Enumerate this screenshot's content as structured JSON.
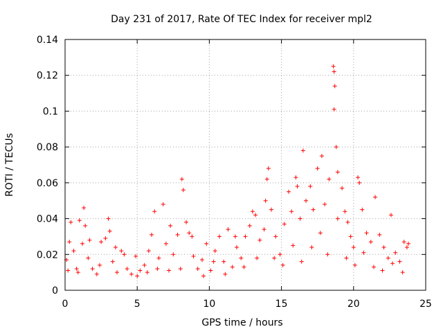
{
  "chart_data": {
    "type": "scatter",
    "title": "Day 231 of 2017, Rate Of TEC Index for receiver mpl2",
    "xlabel": "GPS time / hours",
    "ylabel": "ROTI / TECUs",
    "xlim": [
      0,
      25
    ],
    "ylim": [
      0,
      0.14
    ],
    "xticks": [
      0,
      5,
      10,
      15,
      20,
      25
    ],
    "xtick_labels": [
      "0",
      "5",
      "10",
      "15",
      "20",
      "25"
    ],
    "yticks": [
      0,
      0.02,
      0.04,
      0.06,
      0.08,
      0.1,
      0.12,
      0.14
    ],
    "ytick_labels": [
      "0",
      "0.02",
      "0.04",
      "0.06",
      "0.08",
      "0.1",
      "0.12",
      "0.14"
    ],
    "grid": true,
    "marker": "+",
    "color": "#ff0000",
    "series": [
      {
        "name": "ROTI",
        "points": [
          [
            0.1,
            0.017
          ],
          [
            0.3,
            0.027
          ],
          [
            0.4,
            0.038
          ],
          [
            0.6,
            0.022
          ],
          [
            0.8,
            0.012
          ],
          [
            1.0,
            0.039
          ],
          [
            1.2,
            0.026
          ],
          [
            1.3,
            0.046
          ],
          [
            1.4,
            0.036
          ],
          [
            1.6,
            0.018
          ],
          [
            1.9,
            0.012
          ],
          [
            2.2,
            0.009
          ],
          [
            2.5,
            0.027
          ],
          [
            2.8,
            0.029
          ],
          [
            3.0,
            0.04
          ],
          [
            3.1,
            0.033
          ],
          [
            3.3,
            0.016
          ],
          [
            3.6,
            0.01
          ],
          [
            3.9,
            0.022
          ],
          [
            4.3,
            0.012
          ],
          [
            4.6,
            0.009
          ],
          [
            4.9,
            0.019
          ],
          [
            5.2,
            0.011
          ],
          [
            5.5,
            0.014
          ],
          [
            5.8,
            0.022
          ],
          [
            6.0,
            0.031
          ],
          [
            6.2,
            0.044
          ],
          [
            6.5,
            0.018
          ],
          [
            6.8,
            0.048
          ],
          [
            7.0,
            0.026
          ],
          [
            7.2,
            0.011
          ],
          [
            7.5,
            0.02
          ],
          [
            7.8,
            0.031
          ],
          [
            8.1,
            0.062
          ],
          [
            8.2,
            0.056
          ],
          [
            8.4,
            0.038
          ],
          [
            8.6,
            0.032
          ],
          [
            8.9,
            0.019
          ],
          [
            9.2,
            0.012
          ],
          [
            9.5,
            0.017
          ],
          [
            9.8,
            0.026
          ],
          [
            10.1,
            0.011
          ],
          [
            10.4,
            0.022
          ],
          [
            10.7,
            0.03
          ],
          [
            11.0,
            0.016
          ],
          [
            11.3,
            0.034
          ],
          [
            11.6,
            0.013
          ],
          [
            11.9,
            0.024
          ],
          [
            12.2,
            0.018
          ],
          [
            12.5,
            0.03
          ],
          [
            12.8,
            0.036
          ],
          [
            13.0,
            0.044
          ],
          [
            13.2,
            0.042
          ],
          [
            13.5,
            0.028
          ],
          [
            13.8,
            0.034
          ],
          [
            14.0,
            0.062
          ],
          [
            14.1,
            0.068
          ],
          [
            14.3,
            0.045
          ],
          [
            14.6,
            0.03
          ],
          [
            14.9,
            0.02
          ],
          [
            15.2,
            0.037
          ],
          [
            15.5,
            0.055
          ],
          [
            15.7,
            0.044
          ],
          [
            16.0,
            0.063
          ],
          [
            16.1,
            0.058
          ],
          [
            16.3,
            0.04
          ],
          [
            16.5,
            0.078
          ],
          [
            16.7,
            0.05
          ],
          [
            17.0,
            0.058
          ],
          [
            17.2,
            0.045
          ],
          [
            17.5,
            0.068
          ],
          [
            17.8,
            0.075
          ],
          [
            18.0,
            0.048
          ],
          [
            18.3,
            0.062
          ],
          [
            18.6,
            0.125
          ],
          [
            18.65,
            0.122
          ],
          [
            18.7,
            0.114
          ],
          [
            18.65,
            0.101
          ],
          [
            18.8,
            0.08
          ],
          [
            18.9,
            0.066
          ],
          [
            19.2,
            0.057
          ],
          [
            19.4,
            0.044
          ],
          [
            19.6,
            0.038
          ],
          [
            19.8,
            0.03
          ],
          [
            20.0,
            0.024
          ],
          [
            20.3,
            0.063
          ],
          [
            20.4,
            0.06
          ],
          [
            20.6,
            0.045
          ],
          [
            20.9,
            0.032
          ],
          [
            21.2,
            0.027
          ],
          [
            21.5,
            0.052
          ],
          [
            21.8,
            0.031
          ],
          [
            22.1,
            0.024
          ],
          [
            22.4,
            0.018
          ],
          [
            22.6,
            0.042
          ],
          [
            22.9,
            0.021
          ],
          [
            23.2,
            0.016
          ],
          [
            23.5,
            0.027
          ],
          [
            23.7,
            0.024
          ],
          [
            0.2,
            0.011
          ],
          [
            0.9,
            0.01
          ],
          [
            1.7,
            0.028
          ],
          [
            2.4,
            0.014
          ],
          [
            3.5,
            0.024
          ],
          [
            4.1,
            0.02
          ],
          [
            5.0,
            0.008
          ],
          [
            5.7,
            0.01
          ],
          [
            6.4,
            0.012
          ],
          [
            7.3,
            0.036
          ],
          [
            8.0,
            0.012
          ],
          [
            8.8,
            0.03
          ],
          [
            9.6,
            0.008
          ],
          [
            10.3,
            0.016
          ],
          [
            11.1,
            0.009
          ],
          [
            11.8,
            0.03
          ],
          [
            12.4,
            0.013
          ],
          [
            13.3,
            0.018
          ],
          [
            13.9,
            0.05
          ],
          [
            14.5,
            0.018
          ],
          [
            15.1,
            0.014
          ],
          [
            15.8,
            0.025
          ],
          [
            16.4,
            0.016
          ],
          [
            17.1,
            0.024
          ],
          [
            17.7,
            0.032
          ],
          [
            18.2,
            0.02
          ],
          [
            18.9,
            0.04
          ],
          [
            19.5,
            0.018
          ],
          [
            20.1,
            0.014
          ],
          [
            20.7,
            0.021
          ],
          [
            21.4,
            0.013
          ],
          [
            22.0,
            0.011
          ],
          [
            22.7,
            0.015
          ],
          [
            23.4,
            0.01
          ],
          [
            23.8,
            0.026
          ]
        ]
      }
    ]
  }
}
